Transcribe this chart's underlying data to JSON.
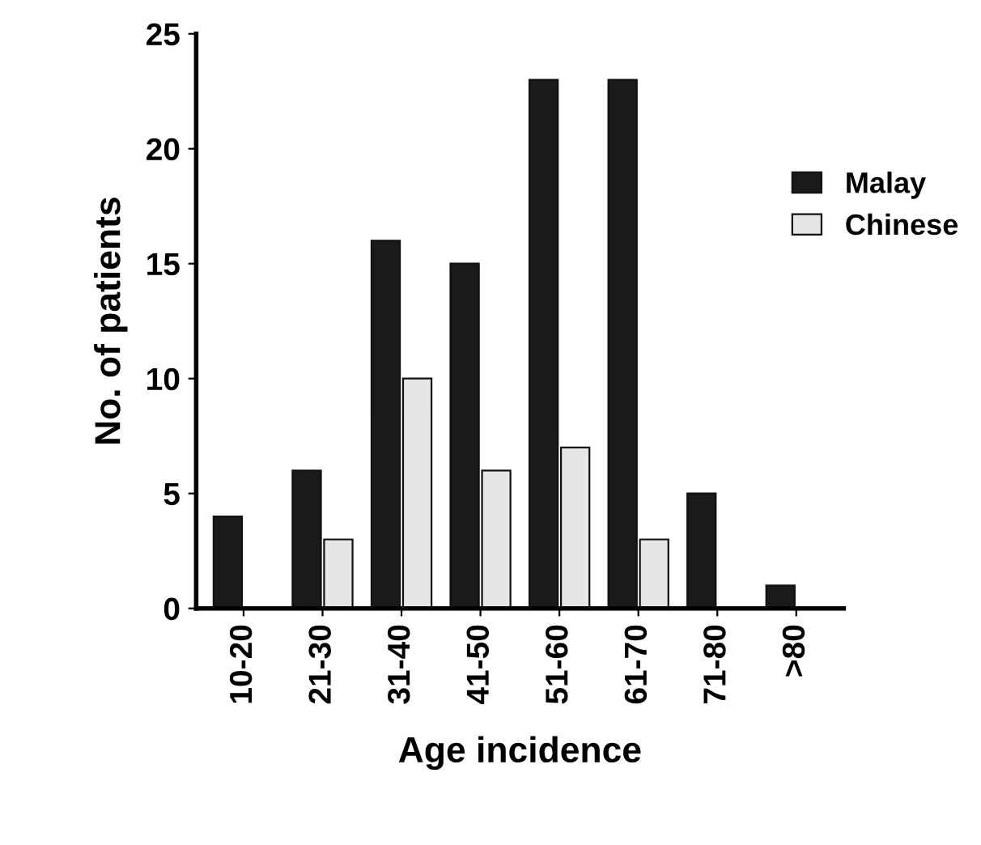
{
  "chart_data": {
    "type": "bar",
    "xlabel": "Age incidence",
    "ylabel": "No. of patients",
    "categories": [
      "10-20",
      "21-30",
      "31-40",
      "41-50",
      "51-60",
      "61-70",
      "71-80",
      ">80"
    ],
    "series": [
      {
        "name": "Malay",
        "color": "#1a1a1a",
        "values": [
          4,
          6,
          16,
          15,
          23,
          23,
          5,
          1
        ]
      },
      {
        "name": "Chinese",
        "color": "#e6e6e6",
        "values": [
          null,
          3,
          10,
          6,
          7,
          3,
          null,
          null
        ]
      }
    ],
    "ylim": [
      0,
      25
    ],
    "yticks": [
      0,
      5,
      10,
      15,
      20,
      25
    ],
    "legend": "right",
    "grid": false
  }
}
